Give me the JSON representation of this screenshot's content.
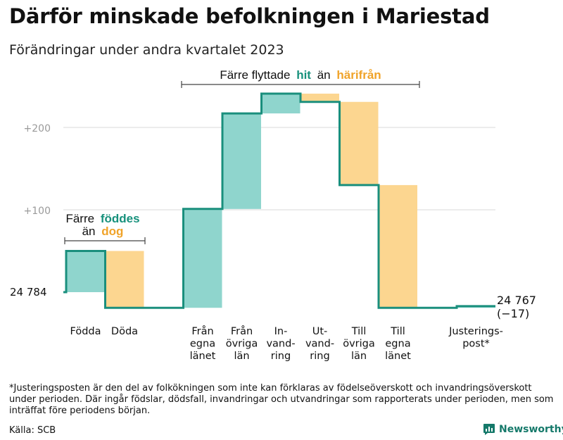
{
  "title": "Därför minskade befolkningen i Mariestad",
  "subtitle": "Förändringar under andra kvartalet 2023",
  "colors": {
    "increase": "#8fd5cd",
    "decrease": "#fcd690",
    "line": "#1a8f7d",
    "grid": "#d9d9d9",
    "hit": "#17917c",
    "harifran": "#f0a329"
  },
  "annotations": {
    "migration": {
      "prefix": "Färre flyttade",
      "hit": "hit",
      "middle": "än",
      "harifran": "härifrån"
    },
    "births": {
      "line1_prefix": "Färre",
      "line1_accent": "föddes",
      "line2_prefix": "än",
      "line2_accent": "dog"
    }
  },
  "chart_data": {
    "type": "waterfall",
    "title": "Därför minskade befolkningen i Mariestad",
    "subtitle": "Förändringar under andra kvartalet 2023",
    "start_value": 24784,
    "end_value": 24767,
    "start_label": "24  784",
    "end_label": "24 767",
    "end_change_label": "(−17)",
    "y_ticks": [
      {
        "value": 100,
        "label": "+100"
      },
      {
        "value": 200,
        "label": "+200"
      }
    ],
    "ylim": [
      -30,
      250
    ],
    "steps": [
      {
        "lines": [
          "Födda"
        ],
        "change": 50
      },
      {
        "lines": [
          "Döda"
        ],
        "change": -69
      },
      {
        "lines": [
          "Från",
          "egna",
          "länet"
        ],
        "change": 120
      },
      {
        "lines": [
          "Från",
          "övriga",
          "län"
        ],
        "change": 116
      },
      {
        "lines": [
          "In-",
          "vand-",
          "ring"
        ],
        "change": 24
      },
      {
        "lines": [
          "Ut-",
          "vand-",
          "ring"
        ],
        "change": -10
      },
      {
        "lines": [
          "Till",
          "övriga",
          "län"
        ],
        "change": -101
      },
      {
        "lines": [
          "Till",
          "egna",
          "länet"
        ],
        "change": -149
      },
      {
        "lines": [
          "Justerings-",
          "post*"
        ],
        "change": 2
      }
    ]
  },
  "footnote": "*Justeringsposten är den del av folkökningen som inte kan förklaras av födelseöverskott och invandringsöverskott under perioden. Där ingår födslar, dödsfall, invandringar och utvandringar som rapporterats under perioden, men som inträffat före periodens början.",
  "source": "Källa: SCB",
  "brand": "Newsworthy"
}
